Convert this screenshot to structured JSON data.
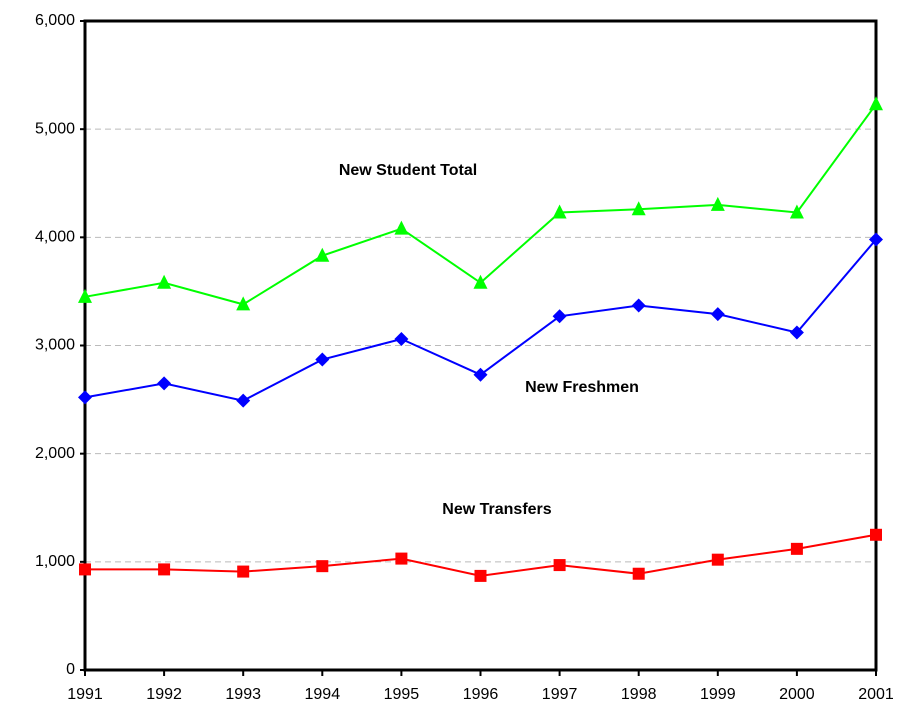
{
  "chart_data": {
    "type": "line",
    "categories": [
      "1991",
      "1992",
      "1993",
      "1994",
      "1995",
      "1996",
      "1997",
      "1998",
      "1999",
      "2000",
      "2001"
    ],
    "series": [
      {
        "name": "New Student Total",
        "color": "#00ff00",
        "marker": "triangle",
        "values": [
          3450,
          3580,
          3380,
          3830,
          4080,
          3580,
          4230,
          4260,
          4300,
          4230,
          5230
        ]
      },
      {
        "name": "New Freshmen",
        "color": "#0000ff",
        "marker": "diamond",
        "values": [
          2520,
          2650,
          2490,
          2870,
          3060,
          2730,
          3270,
          3370,
          3290,
          3120,
          3980
        ]
      },
      {
        "name": "New Transfers",
        "color": "#ff0000",
        "marker": "square",
        "values": [
          930,
          930,
          910,
          960,
          1030,
          870,
          970,
          890,
          1020,
          1120,
          1250
        ]
      }
    ],
    "ylim": [
      0,
      6000
    ],
    "yticks": [
      0,
      {
        "value": 1000,
        "label": "1,000"
      },
      {
        "value": 2000,
        "label": "2,000"
      },
      {
        "value": 3000,
        "label": "3,000"
      },
      {
        "value": 4000,
        "label": "4,000"
      },
      {
        "value": 5000,
        "label": "5,000"
      },
      {
        "value": 6000,
        "label": "6,000"
      }
    ],
    "grid": true
  }
}
